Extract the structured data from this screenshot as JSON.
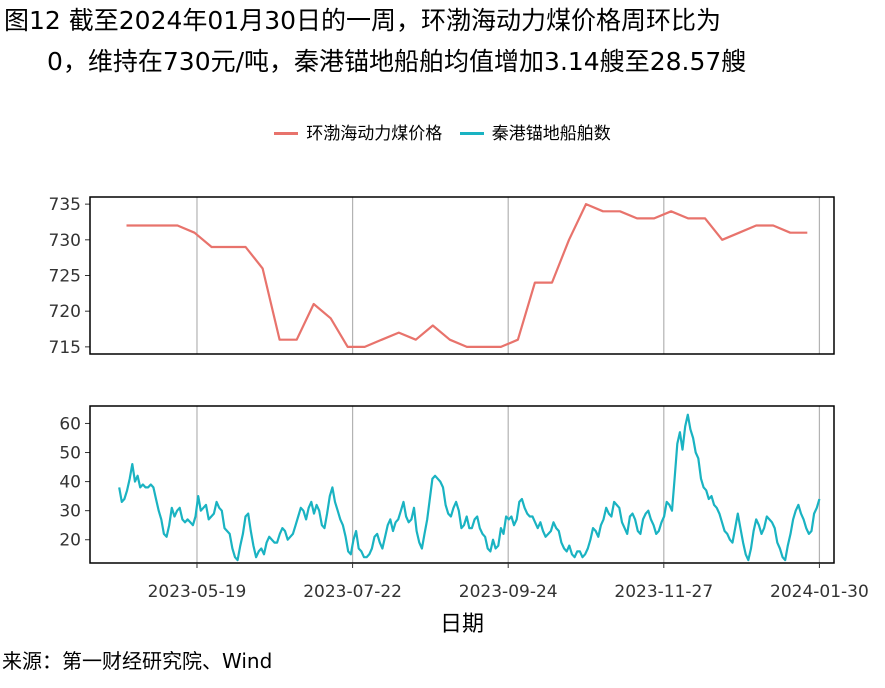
{
  "title": {
    "line1": "图12  截至2024年01月30日的一周，环渤海动力煤价格周环比为",
    "line2": "0，维持在730元/吨，秦港锚地船舶均值增加3.14艘至28.57艘"
  },
  "source": "来源：第一财经研究院、Wind",
  "colors": {
    "price": "#E8736C",
    "ships": "#1AB3C2"
  },
  "chart_data": {
    "type": "line",
    "xlabel": "日期",
    "x_range": [
      "2023-04-05",
      "2024-02-05"
    ],
    "x_ticks": [
      "2023-05-19",
      "2023-07-22",
      "2023-09-24",
      "2023-11-27",
      "2024-01-30"
    ],
    "legend_position": "top",
    "grid": "vertical",
    "legend": [
      "环渤海动力煤价格",
      "秦港锚地船舶数"
    ],
    "panels": [
      {
        "series_name": "环渤海动力煤价格",
        "ylim": [
          714,
          736
        ],
        "y_ticks": [
          715,
          720,
          725,
          730,
          735
        ],
        "dates": [
          "2023-04-20",
          "2023-04-27",
          "2023-05-04",
          "2023-05-11",
          "2023-05-18",
          "2023-05-25",
          "2023-06-01",
          "2023-06-08",
          "2023-06-15",
          "2023-06-22",
          "2023-06-29",
          "2023-07-06",
          "2023-07-13",
          "2023-07-20",
          "2023-07-27",
          "2023-08-03",
          "2023-08-10",
          "2023-08-17",
          "2023-08-24",
          "2023-08-31",
          "2023-09-07",
          "2023-09-14",
          "2023-09-21",
          "2023-09-28",
          "2023-10-05",
          "2023-10-12",
          "2023-10-19",
          "2023-10-26",
          "2023-11-02",
          "2023-11-09",
          "2023-11-16",
          "2023-11-23",
          "2023-11-30",
          "2023-12-07",
          "2023-12-14",
          "2023-12-21",
          "2023-12-28",
          "2024-01-04",
          "2024-01-11",
          "2024-01-18",
          "2024-01-25"
        ],
        "values": [
          732,
          732,
          732,
          732,
          731,
          729,
          729,
          729,
          726,
          716,
          716,
          721,
          719,
          715,
          715,
          716,
          717,
          716,
          718,
          716,
          715,
          715,
          715,
          716,
          724,
          724,
          730,
          735,
          734,
          734,
          733,
          733,
          734,
          733,
          733,
          730,
          731,
          732,
          732,
          731,
          731
        ]
      },
      {
        "series_name": "秦港锚地船舶数",
        "ylim": [
          12,
          66
        ],
        "y_ticks": [
          20,
          30,
          40,
          50,
          60
        ],
        "start_date": "2023-04-17",
        "end_date": "2024-01-30",
        "values": [
          38,
          33,
          34,
          37,
          41,
          46,
          40,
          42,
          38,
          39,
          38,
          38,
          39,
          38,
          34,
          30,
          27,
          22,
          21,
          25,
          31,
          28,
          30,
          31,
          27,
          26,
          27,
          26,
          25,
          28,
          35,
          30,
          31,
          32,
          27,
          28,
          29,
          33,
          31,
          30,
          24,
          23,
          22,
          17,
          14,
          13,
          18,
          22,
          28,
          29,
          23,
          18,
          14,
          16,
          17,
          15,
          19,
          21,
          20,
          19,
          19,
          22,
          24,
          23,
          20,
          21,
          22,
          25,
          28,
          31,
          30,
          27,
          31,
          33,
          29,
          32,
          30,
          25,
          24,
          29,
          35,
          38,
          33,
          30,
          27,
          25,
          21,
          16,
          15,
          20,
          23,
          17,
          16,
          14,
          14,
          15,
          17,
          21,
          22,
          19,
          17,
          21,
          25,
          27,
          23,
          26,
          27,
          30,
          33,
          28,
          26,
          27,
          31,
          23,
          19,
          17,
          22,
          27,
          34,
          41,
          42,
          41,
          40,
          38,
          32,
          29,
          28,
          31,
          33,
          30,
          24,
          25,
          28,
          24,
          24,
          27,
          28,
          24,
          22,
          21,
          17,
          16,
          20,
          17,
          18,
          24,
          22,
          28,
          27,
          28,
          25,
          27,
          33,
          34,
          31,
          29,
          28,
          28,
          26,
          24,
          26,
          23,
          21,
          22,
          23,
          26,
          24,
          23,
          19,
          17,
          16,
          18,
          15,
          14,
          16,
          16,
          14,
          15,
          17,
          20,
          24,
          23,
          21,
          25,
          27,
          31,
          29,
          28,
          33,
          32,
          31,
          26,
          24,
          22,
          28,
          29,
          27,
          23,
          22,
          27,
          29,
          30,
          27,
          25,
          22,
          23,
          26,
          28,
          33,
          32,
          30,
          41,
          53,
          57,
          51,
          59,
          63,
          58,
          55,
          50,
          48,
          41,
          38,
          37,
          34,
          35,
          32,
          31,
          29,
          26,
          23,
          22,
          20,
          19,
          24,
          29,
          24,
          19,
          15,
          13,
          17,
          23,
          27,
          25,
          22,
          24,
          28,
          27,
          26,
          24,
          19,
          17,
          14,
          13,
          18,
          22,
          27,
          30,
          32,
          29,
          27,
          24,
          22,
          23,
          29,
          31,
          34
        ]
      }
    ]
  }
}
